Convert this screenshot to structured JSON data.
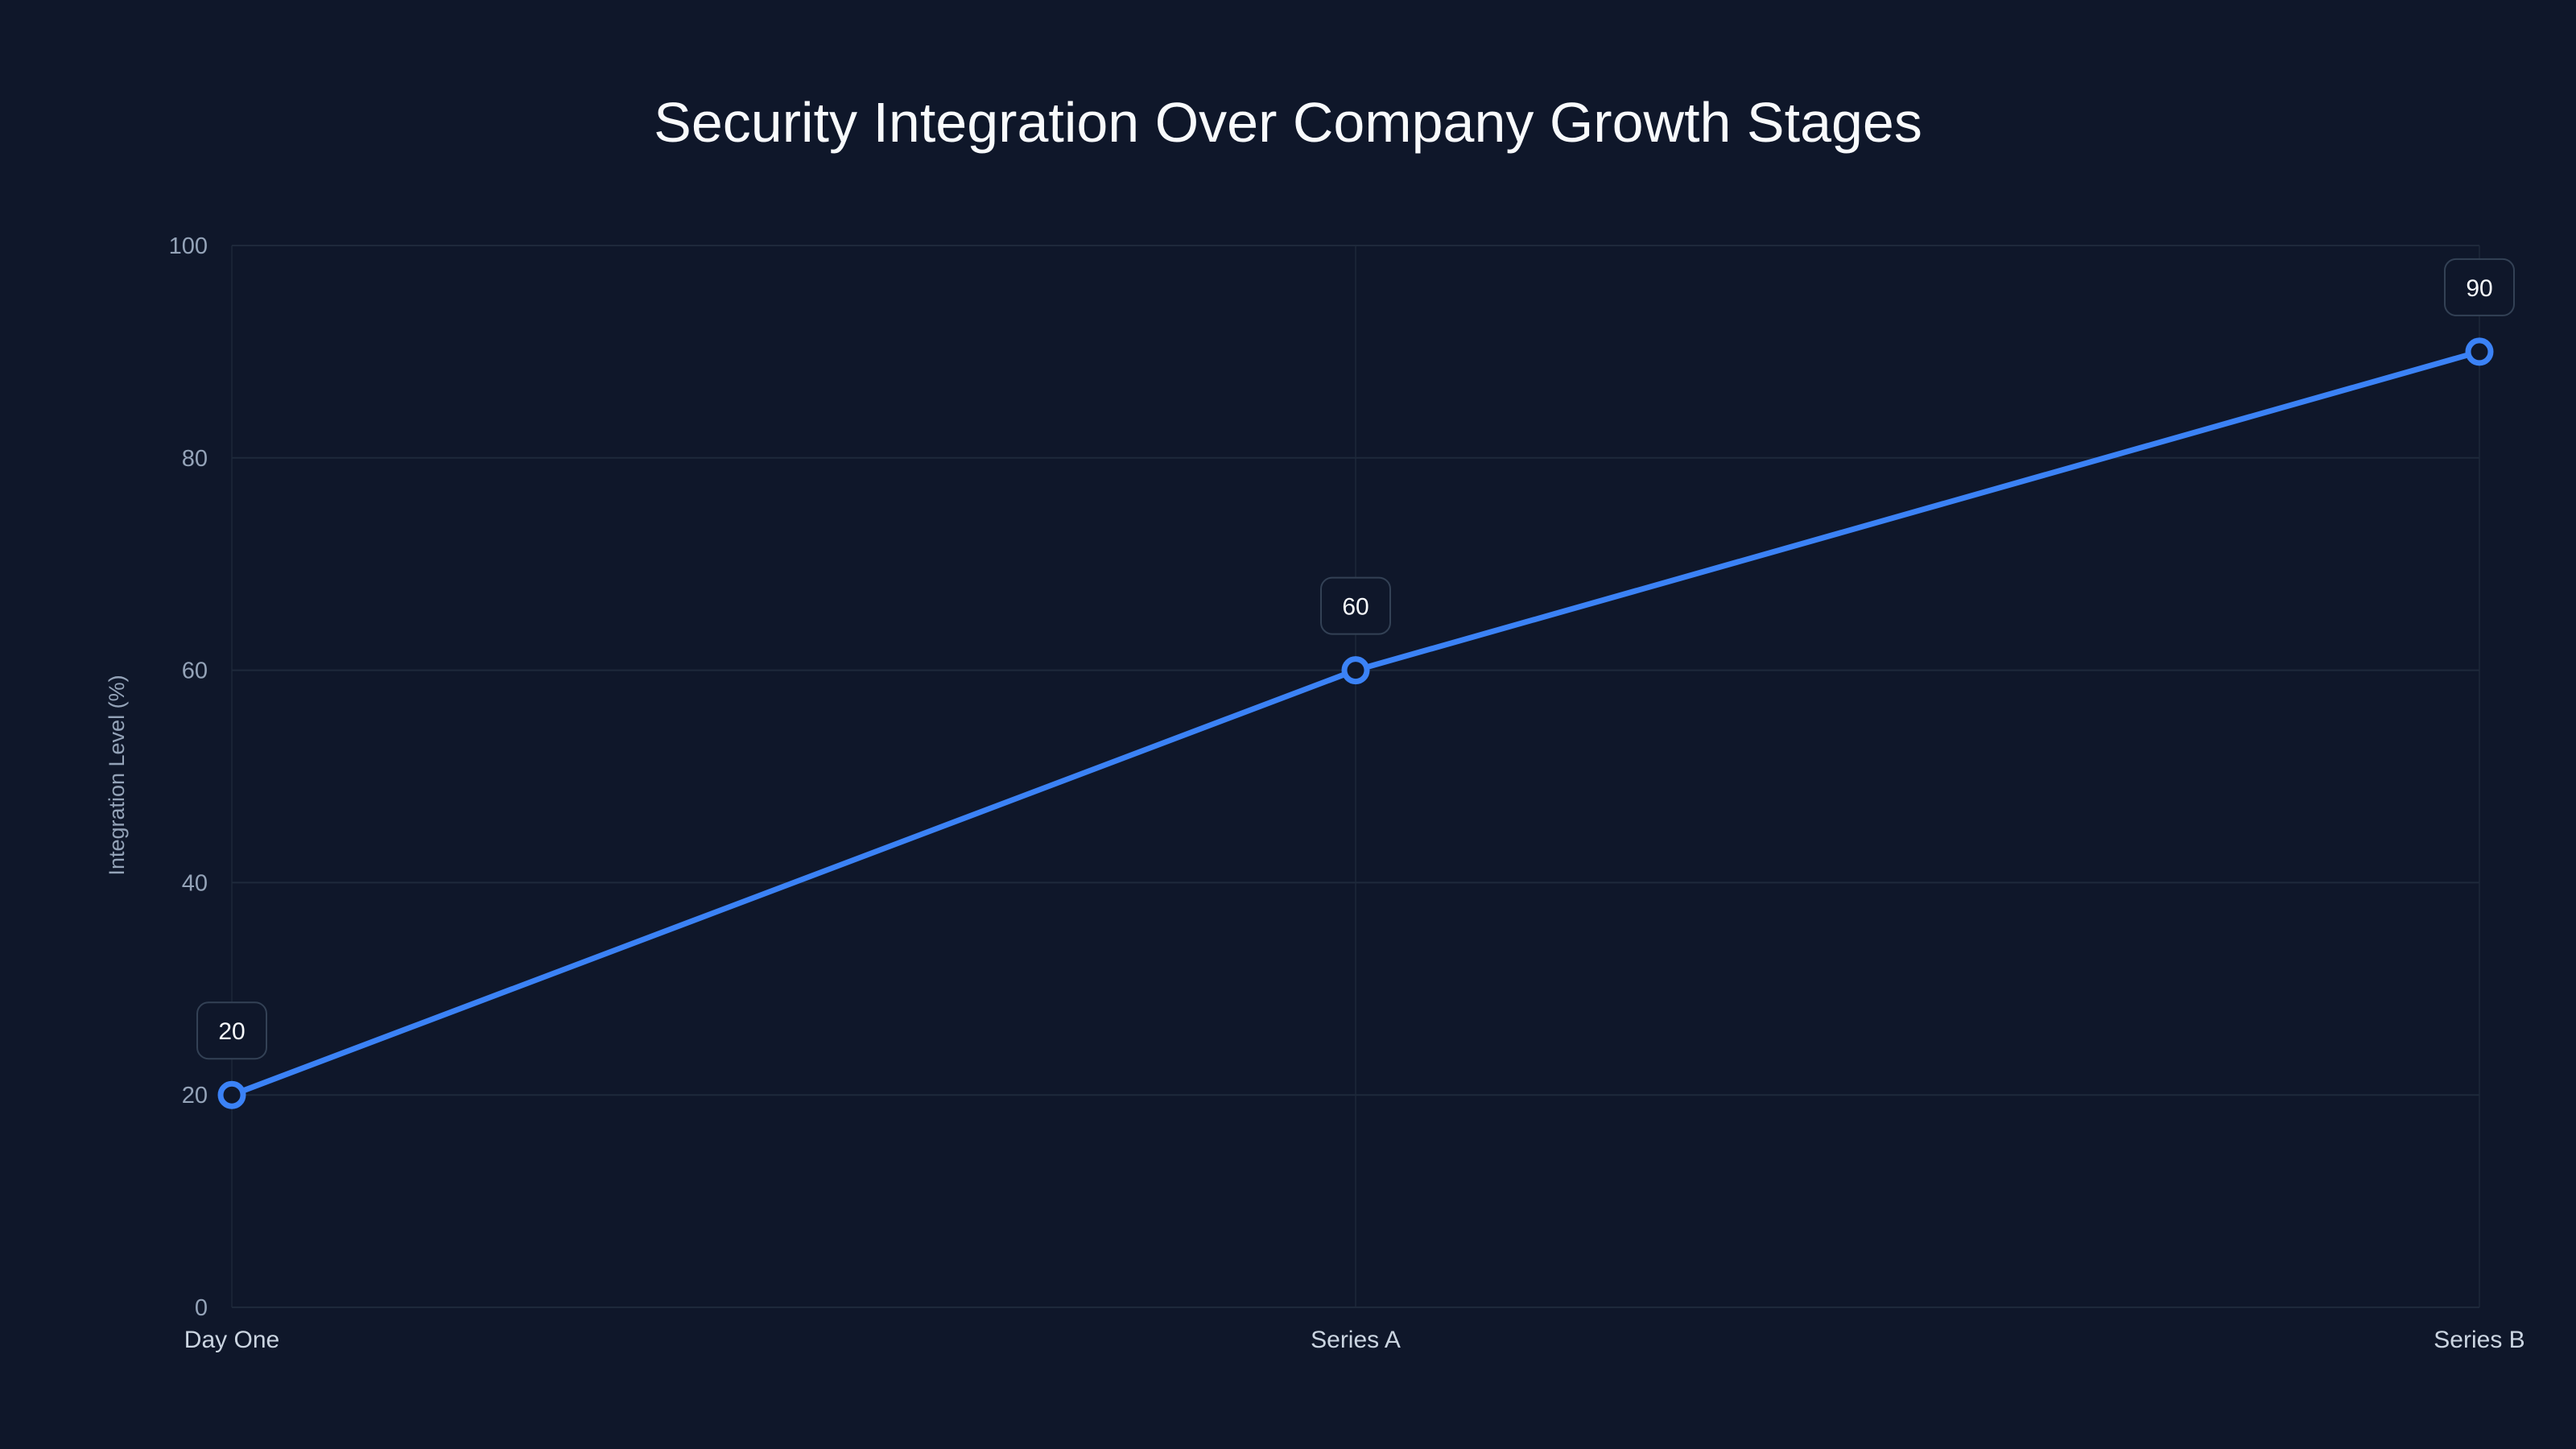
{
  "chart": {
    "title": "Security Integration Over Company Growth Stages",
    "ylabel": "Integration Level (%)",
    "yticks": [
      "0",
      "20",
      "40",
      "60",
      "80",
      "100"
    ],
    "xticks": [
      "Day One",
      "Series A",
      "Series B"
    ],
    "data_labels": [
      "20",
      "60",
      "90"
    ]
  },
  "colors": {
    "background": "#0f172a",
    "line": "#3b82f6",
    "grid": "#1e293b",
    "label_box_border": "#334155"
  },
  "chart_data": {
    "type": "line",
    "title": "Security Integration Over Company Growth Stages",
    "xlabel": "",
    "ylabel": "Integration Level (%)",
    "categories": [
      "Day One",
      "Series A",
      "Series B"
    ],
    "series": [
      {
        "name": "Integration Level",
        "values": [
          20,
          60,
          90
        ]
      }
    ],
    "ylim": [
      0,
      100
    ],
    "yticks": [
      0,
      20,
      40,
      60,
      80,
      100
    ],
    "grid": true,
    "legend": "none",
    "data_labels": true
  }
}
